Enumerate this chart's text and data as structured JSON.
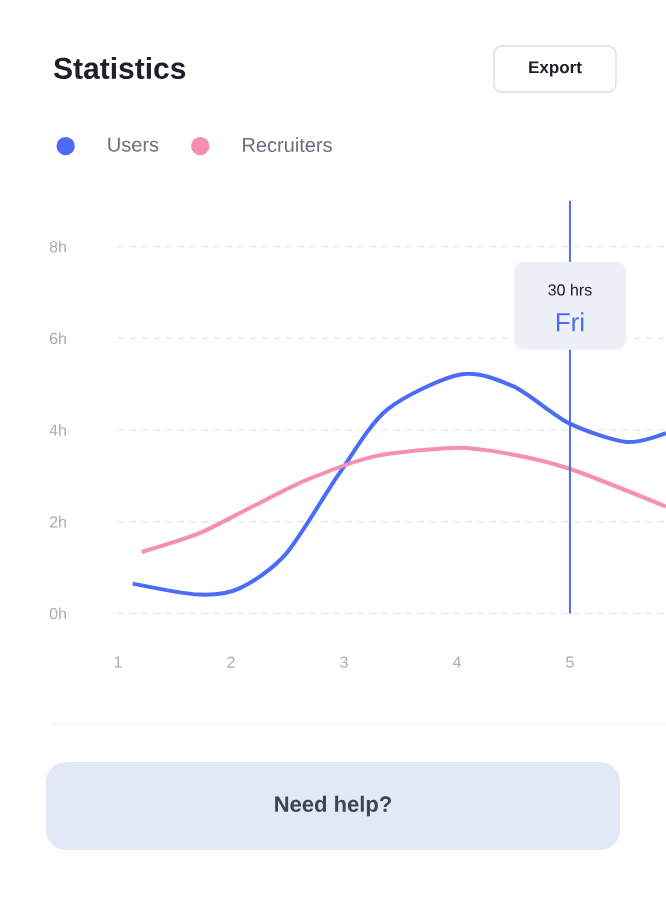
{
  "chart_data": {
    "type": "line",
    "title": "Statistics",
    "x": [
      1.13,
      1.72,
      2.08,
      2.49,
      2.96,
      3.38,
      4.03,
      4.5,
      4.99,
      5.5,
      5.85
    ],
    "series": [
      {
        "name": "Users",
        "color": "#4a6cf7",
        "values": [
          0.65,
          0.41,
          0.55,
          1.31,
          3.06,
          4.44,
          5.21,
          4.95,
          4.15,
          3.74,
          3.93
        ]
      },
      {
        "name": "Recruiters",
        "color": "#f590b0",
        "x": [
          1.21,
          1.72,
          2.19,
          2.67,
          3.26,
          3.97,
          4.44,
          4.99,
          5.85
        ],
        "values": [
          1.34,
          1.75,
          2.33,
          2.91,
          3.42,
          3.61,
          3.49,
          3.16,
          2.33
        ]
      }
    ],
    "xlim": [
      1,
      5.85
    ],
    "ylim": [
      0,
      8
    ],
    "xticks": [
      1,
      2,
      3,
      4,
      5
    ],
    "yticks": [
      {
        "value": 0,
        "label": "0h"
      },
      {
        "value": 2,
        "label": "2h"
      },
      {
        "value": 4,
        "label": "4h"
      },
      {
        "value": 6,
        "label": "6h"
      },
      {
        "value": 8,
        "label": "8h"
      }
    ],
    "grid": "y",
    "legend": "top left",
    "marker": "none",
    "line_style": "solid",
    "ref_lines": [
      {
        "axis": "x",
        "value": 5,
        "color": "#4a6cf7"
      }
    ],
    "annotations": [
      {
        "text": "30 hrs",
        "x": 5,
        "y": 7.06
      },
      {
        "text": "Fri",
        "x": 5,
        "y": 6.36
      },
      "Export",
      "Need help?"
    ]
  }
}
